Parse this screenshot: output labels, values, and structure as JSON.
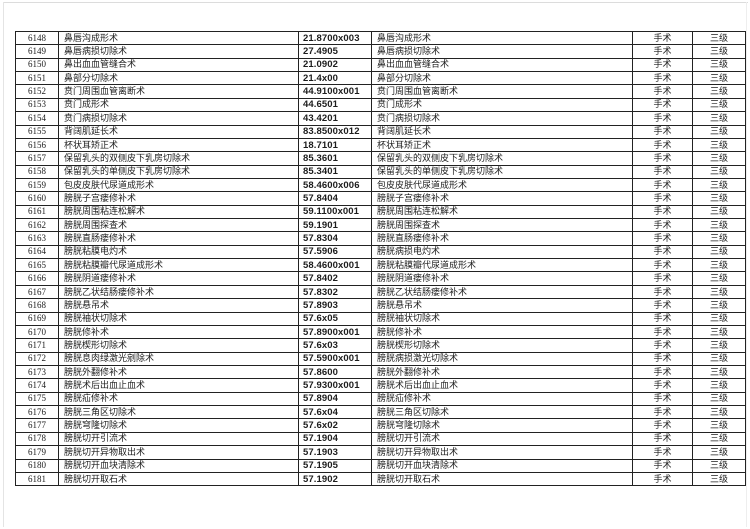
{
  "page": {
    "background": "#ffffff",
    "border_color": "#222222",
    "text_color": "#1c1c1c"
  },
  "table": {
    "column_keys": [
      "row-seq",
      "procedure-name",
      "procedure-code",
      "procedure-name-2",
      "category-cell",
      "level-cell"
    ],
    "rows": [
      [
        "6148",
        "鼻唇沟成形术",
        "21.8700x003",
        "鼻唇沟成形术",
        "手术",
        "三级"
      ],
      [
        "6149",
        "鼻唇病损切除术",
        "27.4905",
        "鼻唇病损切除术",
        "手术",
        "三级"
      ],
      [
        "6150",
        "鼻出血血管缝合术",
        "21.0902",
        "鼻出血血管缝合术",
        "手术",
        "三级"
      ],
      [
        "6151",
        "鼻部分切除术",
        "21.4x00",
        "鼻部分切除术",
        "手术",
        "三级"
      ],
      [
        "6152",
        "贲门周围血管离断术",
        "44.9100x001",
        "贲门周围血管离断术",
        "手术",
        "三级"
      ],
      [
        "6153",
        "贲门成形术",
        "44.6501",
        "贲门成形术",
        "手术",
        "三级"
      ],
      [
        "6154",
        "贲门病损切除术",
        "43.4201",
        "贲门病损切除术",
        "手术",
        "三级"
      ],
      [
        "6155",
        "背阔肌延长术",
        "83.8500x012",
        "背阔肌延长术",
        "手术",
        "三级"
      ],
      [
        "6156",
        "杯状耳矫正术",
        "18.7101",
        "杯状耳矫正术",
        "手术",
        "三级"
      ],
      [
        "6157",
        "保留乳头的双侧皮下乳房切除术",
        "85.3601",
        "保留乳头的双侧皮下乳房切除术",
        "手术",
        "三级"
      ],
      [
        "6158",
        "保留乳头的单侧皮下乳房切除术",
        "85.3401",
        "保留乳头的单侧皮下乳房切除术",
        "手术",
        "三级"
      ],
      [
        "6159",
        "包皮皮肤代尿道成形术",
        "58.4600x006",
        "包皮皮肤代尿道成形术",
        "手术",
        "三级"
      ],
      [
        "6160",
        "膀胱子宫瘘修补术",
        "57.8404",
        "膀胱子宫瘘修补术",
        "手术",
        "三级"
      ],
      [
        "6161",
        "膀胱周围粘连松解术",
        "59.1100x001",
        "膀胱周围粘连松解术",
        "手术",
        "三级"
      ],
      [
        "6162",
        "膀胱周围探查术",
        "59.1901",
        "膀胱周围探查术",
        "手术",
        "三级"
      ],
      [
        "6163",
        "膀胱直肠瘘修补术",
        "57.8304",
        "膀胱直肠瘘修补术",
        "手术",
        "三级"
      ],
      [
        "6164",
        "膀胱粘膜电灼术",
        "57.5906",
        "膀胱病损电灼术",
        "手术",
        "三级"
      ],
      [
        "6165",
        "膀胱粘膜瓣代尿道成形术",
        "58.4600x001",
        "膀胱粘膜瓣代尿道成形术",
        "手术",
        "三级"
      ],
      [
        "6166",
        "膀胱阴道瘘修补术",
        "57.8402",
        "膀胱阴道瘘修补术",
        "手术",
        "三级"
      ],
      [
        "6167",
        "膀胱乙状结肠瘘修补术",
        "57.8302",
        "膀胱乙状结肠瘘修补术",
        "手术",
        "三级"
      ],
      [
        "6168",
        "膀胱悬吊术",
        "57.8903",
        "膀胱悬吊术",
        "手术",
        "三级"
      ],
      [
        "6169",
        "膀胱袖状切除术",
        "57.6x05",
        "膀胱袖状切除术",
        "手术",
        "三级"
      ],
      [
        "6170",
        "膀胱修补术",
        "57.8900x001",
        "膀胱修补术",
        "手术",
        "三级"
      ],
      [
        "6171",
        "膀胱楔形切除术",
        "57.6x03",
        "膀胱楔形切除术",
        "手术",
        "三级"
      ],
      [
        "6172",
        "膀胱息肉绿激光剜除术",
        "57.5900x001",
        "膀胱病损激光切除术",
        "手术",
        "三级"
      ],
      [
        "6173",
        "膀胱外翻修补术",
        "57.8600",
        "膀胱外翻修补术",
        "手术",
        "三级"
      ],
      [
        "6174",
        "膀胱术后出血止血术",
        "57.9300x001",
        "膀胱术后出血止血术",
        "手术",
        "三级"
      ],
      [
        "6175",
        "膀胱疝修补术",
        "57.8904",
        "膀胱疝修补术",
        "手术",
        "三级"
      ],
      [
        "6176",
        "膀胱三角区切除术",
        "57.6x04",
        "膀胱三角区切除术",
        "手术",
        "三级"
      ],
      [
        "6177",
        "膀胱穹隆切除术",
        "57.6x02",
        "膀胱穹隆切除术",
        "手术",
        "三级"
      ],
      [
        "6178",
        "膀胱切开引流术",
        "57.1904",
        "膀胱切开引流术",
        "手术",
        "三级"
      ],
      [
        "6179",
        "膀胱切开异物取出术",
        "57.1903",
        "膀胱切开异物取出术",
        "手术",
        "三级"
      ],
      [
        "6180",
        "膀胱切开血块清除术",
        "57.1905",
        "膀胱切开血块清除术",
        "手术",
        "三级"
      ],
      [
        "6181",
        "膀胱切开取石术",
        "57.1902",
        "膀胱切开取石术",
        "手术",
        "三级"
      ]
    ]
  }
}
